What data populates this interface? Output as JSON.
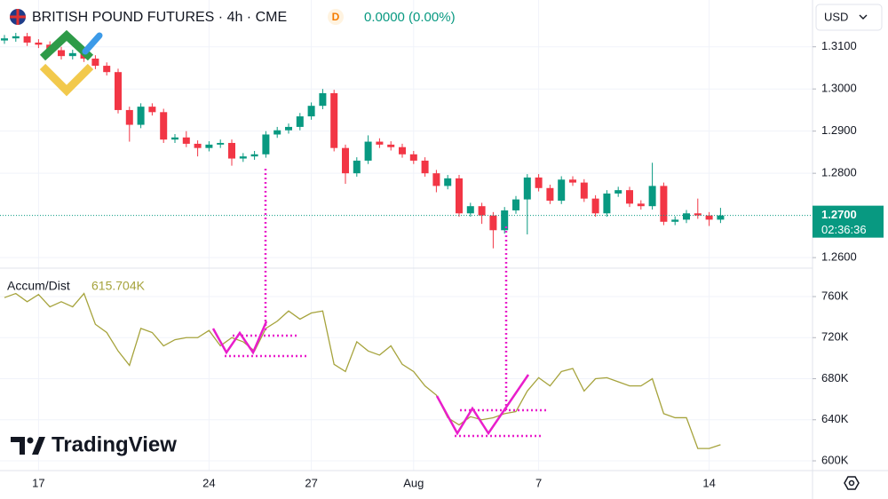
{
  "chart_data": [
    {
      "type": "candlestick",
      "title": "BRITISH POUND FUTURES · 4h · CME",
      "badge": "D",
      "change_label": "0.0000 (0.00%)",
      "currency": "USD",
      "price_label": "1.2700",
      "countdown": "02:36:36",
      "watermark": "TradingView",
      "up_color": "#089981",
      "down_color": "#f23645",
      "grid": true,
      "categories": [
        null,
        null,
        null,
        "17",
        null,
        null,
        null,
        null,
        null,
        null,
        null,
        null,
        null,
        null,
        null,
        null,
        null,
        null,
        "24",
        null,
        null,
        null,
        null,
        null,
        null,
        null,
        null,
        "27",
        null,
        null,
        null,
        null,
        null,
        null,
        null,
        null,
        "Aug",
        null,
        null,
        null,
        null,
        null,
        null,
        null,
        null,
        null,
        null,
        "7",
        null,
        null,
        null,
        null,
        null,
        null,
        null,
        null,
        null,
        null,
        null,
        null,
        null,
        null,
        "14",
        null
      ],
      "open": [
        1.3115,
        1.312,
        1.3125,
        1.311,
        1.3105,
        1.3092,
        1.3078,
        1.3085,
        1.3072,
        1.3055,
        1.304,
        1.295,
        1.2915,
        1.2958,
        1.2945,
        1.288,
        1.2885,
        1.287,
        1.286,
        1.2868,
        1.2872,
        1.2835,
        1.284,
        1.2845,
        1.2892,
        1.2902,
        1.291,
        1.2935,
        1.296,
        1.299,
        1.286,
        1.28,
        1.283,
        1.2875,
        1.2868,
        1.2862,
        1.2845,
        1.283,
        1.28,
        1.277,
        1.2788,
        1.2705,
        1.2722,
        1.27,
        1.2665,
        1.2712,
        1.2738,
        1.279,
        1.2765,
        1.2735,
        1.2785,
        1.2778,
        1.274,
        1.2705,
        1.2752,
        1.276,
        1.2728,
        1.2722,
        1.277,
        1.2685,
        1.269,
        1.2705,
        1.27,
        1.269
      ],
      "high": [
        1.3128,
        1.3133,
        1.3133,
        1.3118,
        1.3113,
        1.31,
        1.3093,
        1.3093,
        1.308,
        1.3063,
        1.3048,
        1.2958,
        1.2966,
        1.2966,
        1.2953,
        1.2893,
        1.29,
        1.2878,
        1.2876,
        1.288,
        1.288,
        1.2848,
        1.2853,
        1.29,
        1.291,
        1.2918,
        1.2943,
        1.2968,
        1.3,
        1.2998,
        1.2868,
        1.2838,
        1.289,
        1.2883,
        1.2876,
        1.287,
        1.2853,
        1.2838,
        1.2808,
        1.2796,
        1.2796,
        1.273,
        1.273,
        1.2708,
        1.272,
        1.2746,
        1.2798,
        1.2798,
        1.2773,
        1.2793,
        1.2793,
        1.2786,
        1.2748,
        1.276,
        1.2768,
        1.2768,
        1.2736,
        1.2825,
        1.2778,
        1.2698,
        1.2713,
        1.274,
        1.2708,
        1.2718
      ],
      "low": [
        1.3107,
        1.3112,
        1.3102,
        1.3097,
        1.3084,
        1.307,
        1.307,
        1.3064,
        1.3047,
        1.3032,
        1.2942,
        1.2875,
        1.2907,
        1.2937,
        1.2872,
        1.2872,
        1.2862,
        1.284,
        1.2852,
        1.286,
        1.2818,
        1.2827,
        1.2832,
        1.2837,
        1.2884,
        1.2894,
        1.2902,
        1.2927,
        1.2952,
        1.2852,
        1.2775,
        1.2792,
        1.2822,
        1.286,
        1.2854,
        1.2837,
        1.2822,
        1.2792,
        1.2755,
        1.2762,
        1.2697,
        1.2697,
        1.268,
        1.2622,
        1.2657,
        1.2704,
        1.2655,
        1.2757,
        1.2727,
        1.2727,
        1.277,
        1.2732,
        1.2697,
        1.2697,
        1.2744,
        1.272,
        1.2714,
        1.2714,
        1.2677,
        1.2677,
        1.2682,
        1.2692,
        1.2675,
        1.2682
      ],
      "close": [
        1.312,
        1.3125,
        1.311,
        1.3105,
        1.3092,
        1.3078,
        1.3085,
        1.3072,
        1.3055,
        1.304,
        1.295,
        1.2915,
        1.2958,
        1.2945,
        1.288,
        1.2885,
        1.287,
        1.286,
        1.2868,
        1.2872,
        1.2835,
        1.284,
        1.2845,
        1.2892,
        1.2902,
        1.291,
        1.2935,
        1.296,
        1.299,
        1.286,
        1.28,
        1.283,
        1.2875,
        1.2868,
        1.2862,
        1.2845,
        1.283,
        1.28,
        1.277,
        1.2788,
        1.2705,
        1.2722,
        1.27,
        1.2665,
        1.2712,
        1.2738,
        1.279,
        1.2765,
        1.2735,
        1.2785,
        1.2778,
        1.274,
        1.2705,
        1.2752,
        1.276,
        1.2728,
        1.2722,
        1.277,
        1.2685,
        1.269,
        1.2705,
        1.27,
        1.269,
        1.27
      ],
      "ylim": [
        1.2575,
        1.3211
      ],
      "yticks": [
        {
          "value": 1.26,
          "label": "1.2600"
        },
        {
          "value": 1.28,
          "label": "1.2800"
        },
        {
          "value": 1.29,
          "label": "1.2900"
        },
        {
          "value": 1.3,
          "label": "1.3000"
        },
        {
          "value": 1.31,
          "label": "1.3100"
        }
      ]
    },
    {
      "type": "line",
      "title": "Accum/Dist",
      "value_label": "615.704K",
      "color": "#a6a33c",
      "values": [
        759000,
        763000,
        755000,
        762000,
        750000,
        755000,
        750000,
        763000,
        733000,
        725000,
        707000,
        693000,
        729000,
        725000,
        712000,
        718000,
        720000,
        720000,
        727000,
        712000,
        720000,
        716000,
        707000,
        729000,
        736000,
        746000,
        738000,
        744000,
        746000,
        694000,
        687000,
        716000,
        707000,
        703000,
        712000,
        694000,
        687000,
        673000,
        664000,
        642000,
        635000,
        643000,
        640000,
        642000,
        646000,
        648000,
        668000,
        681000,
        673000,
        687000,
        690000,
        668000,
        680000,
        681000,
        677000,
        673000,
        673000,
        680000,
        646000,
        642000,
        642000,
        612000,
        612000,
        615704
      ],
      "ylim": [
        590500,
        787700
      ],
      "yticks": [
        {
          "value": 600000,
          "label": "600K"
        },
        {
          "value": 640000,
          "label": "640K"
        },
        {
          "value": 680000,
          "label": "680K"
        },
        {
          "value": 720000,
          "label": "720K"
        },
        {
          "value": 760000,
          "label": "760K"
        }
      ]
    }
  ]
}
